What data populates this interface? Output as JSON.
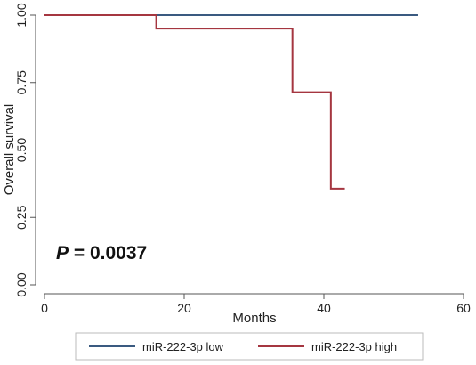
{
  "chart_data": {
    "type": "line",
    "step": true,
    "xlabel": "Months",
    "ylabel": "Overall survival",
    "xlim": [
      0,
      60
    ],
    "ylim": [
      0,
      1
    ],
    "x_ticks": [
      0,
      20,
      40,
      60
    ],
    "x_tick_labels": [
      "0",
      "20",
      "40",
      "60"
    ],
    "y_ticks": [
      0,
      0.25,
      0.5,
      0.75,
      1
    ],
    "y_tick_labels": [
      "0.00",
      "0.25",
      "0.50",
      "0.75",
      "1.00"
    ],
    "grid": false,
    "legend_position": "bottom",
    "annotation": {
      "label": "P",
      "text": " = 0.0037"
    },
    "series": [
      {
        "name": "miR-222-3p low",
        "color": "#3a5a80",
        "x": [
          0,
          53.5
        ],
        "y": [
          1.0,
          1.0
        ]
      },
      {
        "name": "miR-222-3p high",
        "color": "#a53640",
        "x": [
          0,
          16,
          35.5,
          41,
          43
        ],
        "y": [
          1.0,
          0.95,
          0.714,
          0.357,
          0.357
        ]
      }
    ]
  }
}
